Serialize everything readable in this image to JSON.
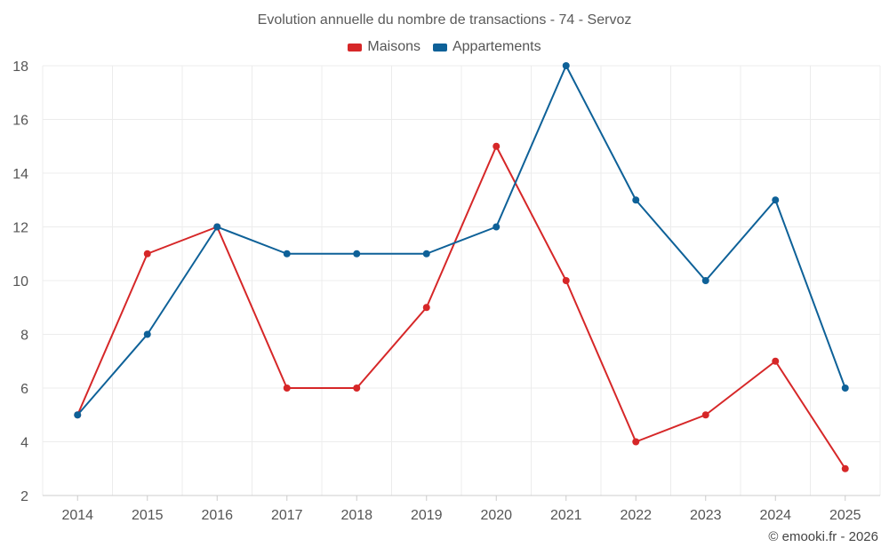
{
  "chart_data": {
    "type": "line",
    "title": "Evolution annuelle du nombre de transactions - 74 - Servoz",
    "categories": [
      "2014",
      "2015",
      "2016",
      "2017",
      "2018",
      "2019",
      "2020",
      "2021",
      "2022",
      "2023",
      "2024",
      "2025"
    ],
    "series": [
      {
        "name": "Maisons",
        "color": "#d62728",
        "values": [
          5,
          11,
          12,
          6,
          6,
          9,
          15,
          10,
          4,
          5,
          7,
          3
        ]
      },
      {
        "name": "Appartements",
        "color": "#0e6198",
        "values": [
          5,
          8,
          12,
          11,
          11,
          11,
          12,
          18,
          13,
          10,
          13,
          6
        ]
      }
    ],
    "ylim": [
      2,
      18
    ],
    "yticks": [
      2,
      4,
      6,
      8,
      10,
      12,
      14,
      16,
      18
    ],
    "grid": true,
    "legend_position": "top-center",
    "xlabel": "",
    "ylabel": ""
  },
  "footer": {
    "credit": "© emooki.fr - 2026"
  }
}
